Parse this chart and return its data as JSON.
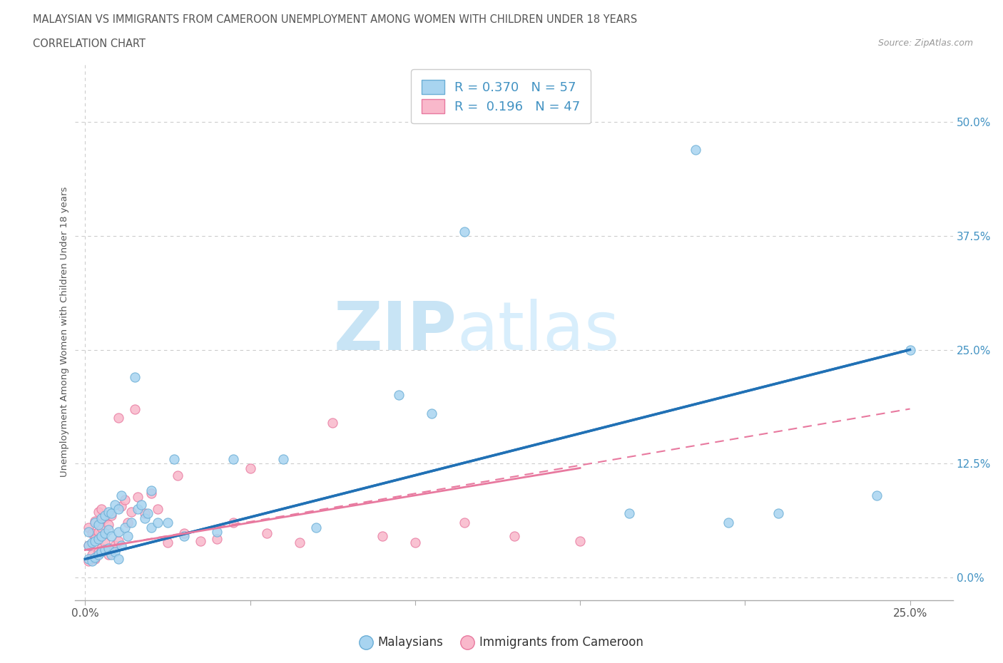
{
  "title_line1": "MALAYSIAN VS IMMIGRANTS FROM CAMEROON UNEMPLOYMENT AMONG WOMEN WITH CHILDREN UNDER 18 YEARS",
  "title_line2": "CORRELATION CHART",
  "source_text": "Source: ZipAtlas.com",
  "ylabel": "Unemployment Among Women with Children Under 18 years",
  "xlim": [
    -0.003,
    0.263
  ],
  "ylim": [
    -0.025,
    0.565
  ],
  "ytick_vals": [
    0.0,
    0.125,
    0.25,
    0.375,
    0.5
  ],
  "ytick_labels": [
    "0.0%",
    "12.5%",
    "25.0%",
    "37.5%",
    "50.0%"
  ],
  "xtick_vals": [
    0.0,
    0.05,
    0.1,
    0.15,
    0.2,
    0.25
  ],
  "xtick_labels": [
    "0.0%",
    "",
    "",
    "",
    "",
    "25.0%"
  ],
  "malaysian_R": "0.370",
  "malaysian_N": "57",
  "cameroon_R": "0.196",
  "cameroon_N": "47",
  "malaysian_fill": "#a8d4f0",
  "malaysian_edge": "#6baed6",
  "cameroon_fill": "#f9b8cb",
  "cameroon_edge": "#e8799f",
  "trend_mal_color": "#2171b5",
  "trend_cam_solid_color": "#e8799f",
  "trend_cam_dash_color": "#e8799f",
  "grid_color": "#cccccc",
  "text_color": "#555555",
  "blue_text_color": "#4393c3",
  "malaysian_x": [
    0.001,
    0.001,
    0.001,
    0.002,
    0.002,
    0.003,
    0.003,
    0.003,
    0.004,
    0.004,
    0.004,
    0.005,
    0.005,
    0.005,
    0.006,
    0.006,
    0.006,
    0.007,
    0.007,
    0.007,
    0.008,
    0.008,
    0.008,
    0.009,
    0.009,
    0.01,
    0.01,
    0.01,
    0.011,
    0.011,
    0.012,
    0.013,
    0.014,
    0.015,
    0.016,
    0.017,
    0.018,
    0.019,
    0.02,
    0.02,
    0.022,
    0.025,
    0.027,
    0.03,
    0.04,
    0.045,
    0.06,
    0.07,
    0.095,
    0.105,
    0.115,
    0.165,
    0.185,
    0.195,
    0.21,
    0.24,
    0.25
  ],
  "malaysian_y": [
    0.02,
    0.035,
    0.05,
    0.018,
    0.038,
    0.022,
    0.04,
    0.06,
    0.025,
    0.042,
    0.058,
    0.028,
    0.045,
    0.065,
    0.03,
    0.048,
    0.068,
    0.032,
    0.052,
    0.072,
    0.025,
    0.045,
    0.07,
    0.028,
    0.08,
    0.02,
    0.05,
    0.075,
    0.035,
    0.09,
    0.055,
    0.045,
    0.06,
    0.22,
    0.075,
    0.08,
    0.065,
    0.07,
    0.055,
    0.095,
    0.06,
    0.06,
    0.13,
    0.045,
    0.05,
    0.13,
    0.13,
    0.055,
    0.2,
    0.18,
    0.38,
    0.07,
    0.47,
    0.06,
    0.07,
    0.09,
    0.25
  ],
  "cameroon_x": [
    0.001,
    0.001,
    0.001,
    0.002,
    0.002,
    0.003,
    0.003,
    0.003,
    0.004,
    0.004,
    0.004,
    0.005,
    0.005,
    0.005,
    0.006,
    0.006,
    0.007,
    0.007,
    0.008,
    0.008,
    0.009,
    0.01,
    0.01,
    0.011,
    0.012,
    0.013,
    0.014,
    0.015,
    0.016,
    0.018,
    0.02,
    0.022,
    0.025,
    0.028,
    0.03,
    0.035,
    0.04,
    0.045,
    0.05,
    0.055,
    0.065,
    0.075,
    0.09,
    0.1,
    0.115,
    0.13,
    0.15
  ],
  "cameroon_y": [
    0.018,
    0.035,
    0.055,
    0.025,
    0.048,
    0.02,
    0.042,
    0.062,
    0.028,
    0.05,
    0.072,
    0.032,
    0.055,
    0.075,
    0.038,
    0.065,
    0.025,
    0.058,
    0.03,
    0.068,
    0.035,
    0.04,
    0.175,
    0.078,
    0.085,
    0.06,
    0.072,
    0.185,
    0.088,
    0.07,
    0.092,
    0.075,
    0.038,
    0.112,
    0.048,
    0.04,
    0.042,
    0.06,
    0.12,
    0.048,
    0.038,
    0.17,
    0.045,
    0.038,
    0.06,
    0.045,
    0.04
  ],
  "trend_mal_x0": 0.0,
  "trend_mal_y0": 0.02,
  "trend_mal_x1": 0.25,
  "trend_mal_y1": 0.25,
  "trend_cam_solid_x0": 0.0,
  "trend_cam_solid_y0": 0.03,
  "trend_cam_solid_x1": 0.15,
  "trend_cam_solid_y1": 0.12,
  "trend_cam_dash_x0": 0.0,
  "trend_cam_dash_y0": 0.03,
  "trend_cam_dash_x1": 0.25,
  "trend_cam_dash_y1": 0.185
}
